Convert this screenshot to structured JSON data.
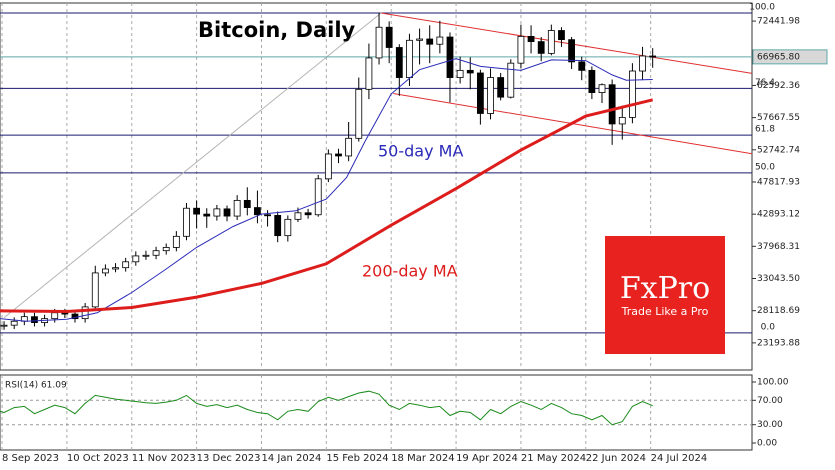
{
  "chart_data": [
    {
      "type": "candlestick",
      "title": "Bitcoin, Daily",
      "x": [
        "2023-09-04",
        "2023-09-09",
        "2023-09-14",
        "2023-09-19",
        "2023-09-24",
        "2023-09-29",
        "2023-10-04",
        "2023-10-09",
        "2023-10-14",
        "2023-10-19",
        "2023-10-24",
        "2023-10-29",
        "2023-11-03",
        "2023-11-08",
        "2023-11-13",
        "2023-11-18",
        "2023-11-23",
        "2023-11-28",
        "2023-12-03",
        "2023-12-08",
        "2023-12-13",
        "2023-12-18",
        "2023-12-23",
        "2023-12-28",
        "2024-01-02",
        "2024-01-07",
        "2024-01-12",
        "2024-01-17",
        "2024-01-22",
        "2024-01-27",
        "2024-02-01",
        "2024-02-06",
        "2024-02-11",
        "2024-02-16",
        "2024-02-21",
        "2024-02-26",
        "2024-03-02",
        "2024-03-07",
        "2024-03-12",
        "2024-03-17",
        "2024-03-22",
        "2024-03-27",
        "2024-04-01",
        "2024-04-06",
        "2024-04-11",
        "2024-04-16",
        "2024-04-21",
        "2024-04-26",
        "2024-05-01",
        "2024-05-06",
        "2024-05-11",
        "2024-05-16",
        "2024-05-21",
        "2024-05-26",
        "2024-05-31",
        "2024-06-05",
        "2024-06-10",
        "2024-06-15",
        "2024-06-20",
        "2024-06-25",
        "2024-06-30",
        "2024-07-05",
        "2024-07-10",
        "2024-07-15",
        "2024-07-20",
        "2024-07-25"
      ],
      "open": [
        25700,
        25800,
        25900,
        26500,
        27200,
        26300,
        26900,
        27800,
        27600,
        26900,
        28700,
        33900,
        34500,
        34700,
        35600,
        36500,
        36600,
        37300,
        37800,
        39500,
        43800,
        42900,
        42600,
        43700,
        42600,
        45000,
        43900,
        42800,
        42700,
        39600,
        42100,
        43100,
        42800,
        48300,
        52100,
        51800,
        54500,
        62000,
        66800,
        71500,
        68400,
        63800,
        69500,
        69700,
        68900,
        70000,
        63800,
        64900,
        64500,
        58300,
        63800,
        60800,
        66000,
        70100,
        69300,
        67500,
        71000,
        69600,
        66200,
        64900,
        61500,
        62700,
        56700,
        57700,
        64800,
        67100
      ],
      "high": [
        26400,
        26500,
        27100,
        27800,
        27800,
        27500,
        28400,
        28400,
        28200,
        29300,
        35000,
        35200,
        35400,
        36200,
        37200,
        37300,
        37900,
        38400,
        40300,
        44600,
        45000,
        43800,
        44300,
        44200,
        45800,
        47000,
        46500,
        43500,
        43300,
        42700,
        43900,
        43700,
        48900,
        52800,
        52900,
        57000,
        63800,
        69000,
        73700,
        72400,
        68900,
        70500,
        71300,
        71800,
        72500,
        70700,
        67000,
        66900,
        65000,
        65200,
        64500,
        66600,
        71900,
        71800,
        70000,
        71900,
        71500,
        70000,
        67000,
        65500,
        62900,
        63500,
        59500,
        66000,
        68500,
        68300
      ],
      "low": [
        25100,
        25200,
        25300,
        25900,
        25700,
        25700,
        26300,
        27000,
        26300,
        26300,
        28200,
        33400,
        34000,
        34100,
        35000,
        35900,
        36000,
        36700,
        37200,
        38900,
        40700,
        40800,
        41900,
        41800,
        42000,
        42700,
        41500,
        41000,
        38600,
        38700,
        41700,
        42200,
        42500,
        47800,
        50700,
        51000,
        54000,
        60500,
        65800,
        66000,
        61000,
        62500,
        65800,
        66000,
        67500,
        60000,
        62900,
        62000,
        56600,
        57400,
        60300,
        60600,
        65200,
        67500,
        66300,
        67200,
        68500,
        65100,
        63400,
        60500,
        59900,
        53500,
        54300,
        56800,
        63400,
        65300
      ],
      "close": [
        25800,
        25900,
        26500,
        27200,
        26300,
        26900,
        27800,
        27600,
        26900,
        28700,
        33900,
        34500,
        34700,
        35600,
        36500,
        36600,
        37300,
        37800,
        39500,
        43800,
        42900,
        42600,
        43700,
        42600,
        45000,
        43900,
        42800,
        42700,
        39600,
        42100,
        43100,
        42800,
        48300,
        52100,
        51800,
        54500,
        62000,
        66800,
        71500,
        68400,
        63800,
        69500,
        69700,
        68900,
        70000,
        63800,
        64900,
        64500,
        58300,
        63800,
        60800,
        66000,
        70100,
        69300,
        67500,
        71000,
        69600,
        66200,
        64900,
        61500,
        62700,
        56700,
        57700,
        64800,
        67100,
        66965.8
      ],
      "up_color": "#ffffff",
      "down_color": "#000000",
      "xlim": [
        "2023-09-07",
        "2024-09-12"
      ],
      "ylim": [
        19040,
        75210
      ],
      "yticks": [
        72441.98,
        62592.36,
        {
          "value": 57667.55,
          "label": "57667.55"
        },
        52742.74,
        47817.93,
        42893.12,
        {
          "value": 37968.31,
          "label": "37968.31"
        },
        {
          "value": 33043.5,
          "label": "33043.50"
        },
        28118.69,
        23193.88
      ],
      "xticks": [
        {
          "value": "2023-09-08",
          "label": "8 Sep 2023"
        },
        {
          "value": "2023-10-10",
          "label": "10 Oct 2023"
        },
        {
          "value": "2023-11-11",
          "label": "11 Nov 2023"
        },
        {
          "value": "2023-12-13",
          "label": "13 Dec 2023"
        },
        {
          "value": "2024-01-14",
          "label": "14 Jan 2024"
        },
        {
          "value": "2024-02-15",
          "label": "15 Feb 2024"
        },
        {
          "value": "2024-03-18",
          "label": "18 Mar 2024"
        },
        {
          "value": "2024-04-19",
          "label": "19 Apr 2024"
        },
        {
          "value": "2024-05-21",
          "label": "21 May 2024"
        },
        {
          "value": "2024-06-22",
          "label": "22 Jun 2024"
        },
        {
          "value": "2024-07-24",
          "label": "24 Jul 2024"
        }
      ],
      "current_price": {
        "value": 66965.8,
        "label": "66965.80",
        "color": "#5fa8a8"
      },
      "fib_color": "#1a1a6e",
      "fib_levels": [
        {
          "value": 73673,
          "label": "100.0"
        },
        {
          "value": 62143,
          "label": "76.4"
        },
        {
          "value": 54993,
          "label": "61.8"
        },
        {
          "value": 49215,
          "label": "50.0"
        },
        {
          "value": 24730,
          "label": "0.0"
        }
      ],
      "channels": [
        {
          "color": "#e03030",
          "x": [
            "2024-03-13",
            "2024-09-12"
          ],
          "values": [
            73673,
            64440
          ]
        },
        {
          "color": "#e03030",
          "x": [
            "2024-03-19",
            "2024-09-12"
          ],
          "values": [
            61360,
            52130
          ]
        },
        {
          "color": "#b4b4b4",
          "x": [
            "2023-09-09",
            "2024-03-13"
          ],
          "values": [
            27040,
            73673
          ]
        }
      ],
      "lines": [
        {
          "name": "50-day MA",
          "color": "#2a2ab8",
          "width": 1,
          "x": [
            "2023-09-04",
            "2023-09-20",
            "2023-10-10",
            "2023-10-25",
            "2023-11-11",
            "2023-11-28",
            "2023-12-13",
            "2023-12-31",
            "2024-01-14",
            "2024-01-31",
            "2024-02-15",
            "2024-02-25",
            "2024-03-05",
            "2024-03-18",
            "2024-04-01",
            "2024-04-19",
            "2024-05-01",
            "2024-05-21",
            "2024-06-05",
            "2024-06-22",
            "2024-07-05",
            "2024-07-12",
            "2024-07-25"
          ],
          "values": [
            27000,
            26500,
            26800,
            27800,
            30900,
            34500,
            37800,
            41000,
            42900,
            43400,
            45200,
            48500,
            54000,
            61300,
            65000,
            66700,
            65500,
            64900,
            66500,
            66400,
            64200,
            63400,
            63500
          ]
        },
        {
          "name": "200-day MA",
          "color": "#dd1c1c",
          "width": 3,
          "x": [
            "2023-09-04",
            "2023-10-10",
            "2023-11-11",
            "2023-12-13",
            "2024-01-14",
            "2024-02-15",
            "2024-03-18",
            "2024-04-19",
            "2024-05-21",
            "2024-06-22",
            "2024-07-25"
          ],
          "values": [
            28100,
            28000,
            28600,
            30200,
            32300,
            35300,
            41200,
            46800,
            52700,
            57900,
            60400
          ]
        }
      ]
    },
    {
      "type": "line",
      "title": "RSI(14) 61.09",
      "color": "#1a8a1a",
      "values": [
        55,
        50,
        58,
        60,
        48,
        55,
        62,
        58,
        48,
        65,
        78,
        75,
        72,
        70,
        68,
        66,
        65,
        67,
        70,
        78,
        65,
        60,
        63,
        58,
        62,
        55,
        50,
        48,
        38,
        52,
        55,
        52,
        68,
        75,
        70,
        76,
        82,
        85,
        80,
        62,
        55,
        65,
        62,
        58,
        60,
        45,
        52,
        50,
        38,
        55,
        48,
        60,
        68,
        62,
        55,
        65,
        58,
        48,
        45,
        38,
        45,
        30,
        35,
        60,
        68,
        61.09
      ],
      "ylim": [
        -11.5,
        111.5
      ],
      "yticks": [
        {
          "value": 100,
          "label": "100.00"
        },
        {
          "value": 70,
          "label": "70.00"
        },
        {
          "value": 30,
          "label": "30.00"
        },
        {
          "value": 0,
          "label": "0.00"
        }
      ],
      "levels": [
        70,
        30
      ]
    }
  ],
  "logo": {
    "brand": "FxPro",
    "tagline": "Trade Like a Pro"
  }
}
